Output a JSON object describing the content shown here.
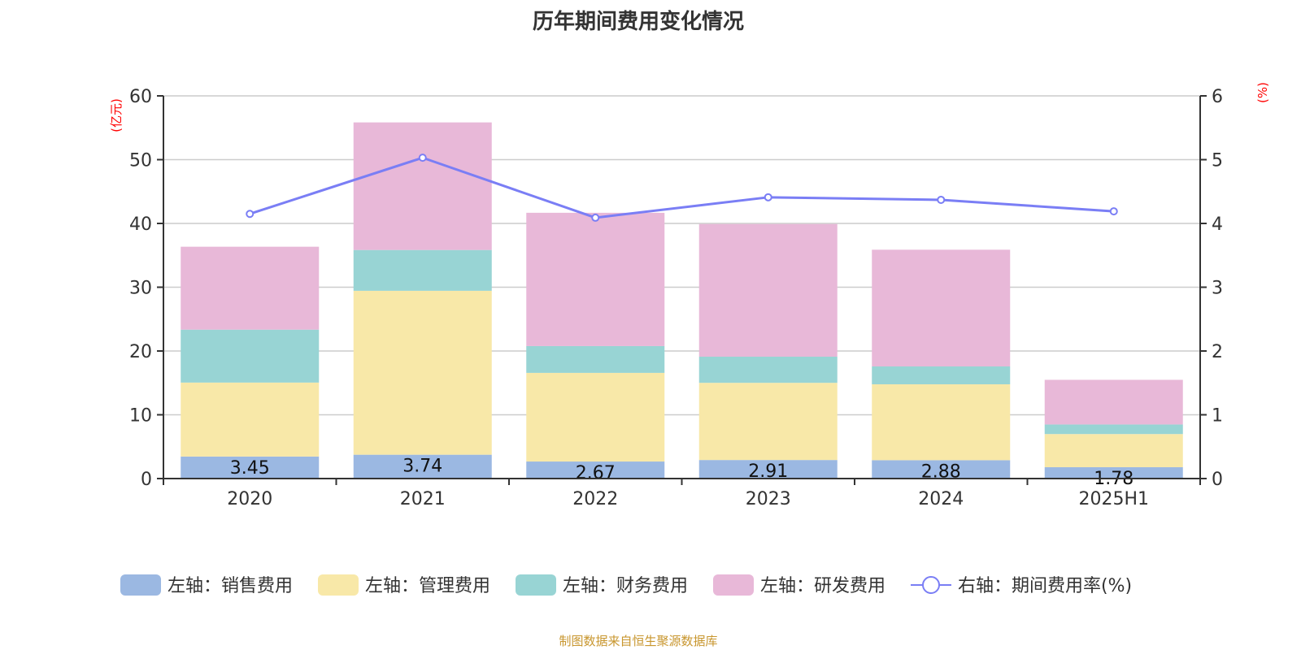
{
  "chart_data": {
    "type": "bar",
    "title": "历年期间费用变化情况",
    "source": "制图数据来自恒生聚源数据库",
    "categories": [
      "2020",
      "2021",
      "2022",
      "2023",
      "2024",
      "2025H1"
    ],
    "y_left": {
      "label": "(亿元)",
      "range": [
        0,
        60
      ],
      "ticks": [
        0,
        10,
        20,
        30,
        40,
        50,
        60
      ]
    },
    "y_right": {
      "label": "(%)",
      "range": [
        0,
        6
      ],
      "ticks": [
        0,
        1,
        2,
        3,
        4,
        5,
        6
      ]
    },
    "grid": true,
    "legend_position": "bottom",
    "series": [
      {
        "name": "左轴：销售费用",
        "axis": "left",
        "stack": true,
        "color": "#9bb8e2",
        "values": [
          3.45,
          3.74,
          2.67,
          2.91,
          2.88,
          1.78
        ],
        "labels": true
      },
      {
        "name": "左轴：管理费用",
        "axis": "left",
        "stack": true,
        "color": "#f8e8a8",
        "values": [
          11.6,
          25.7,
          13.9,
          12.1,
          11.9,
          5.2
        ]
      },
      {
        "name": "左轴：财务费用",
        "axis": "left",
        "stack": true,
        "color": "#98d4d4",
        "values": [
          8.3,
          6.4,
          4.2,
          4.1,
          2.8,
          1.5
        ]
      },
      {
        "name": "左轴：研发费用",
        "axis": "left",
        "stack": true,
        "color": "#e8b8d8",
        "values": [
          13.0,
          20.0,
          20.9,
          20.8,
          18.3,
          7.0
        ]
      },
      {
        "name": "右轴：期间费用率(%)",
        "axis": "right",
        "type": "line",
        "color": "#7a7ef5",
        "values": [
          4.15,
          5.03,
          4.09,
          4.41,
          4.37,
          4.19
        ]
      }
    ]
  }
}
